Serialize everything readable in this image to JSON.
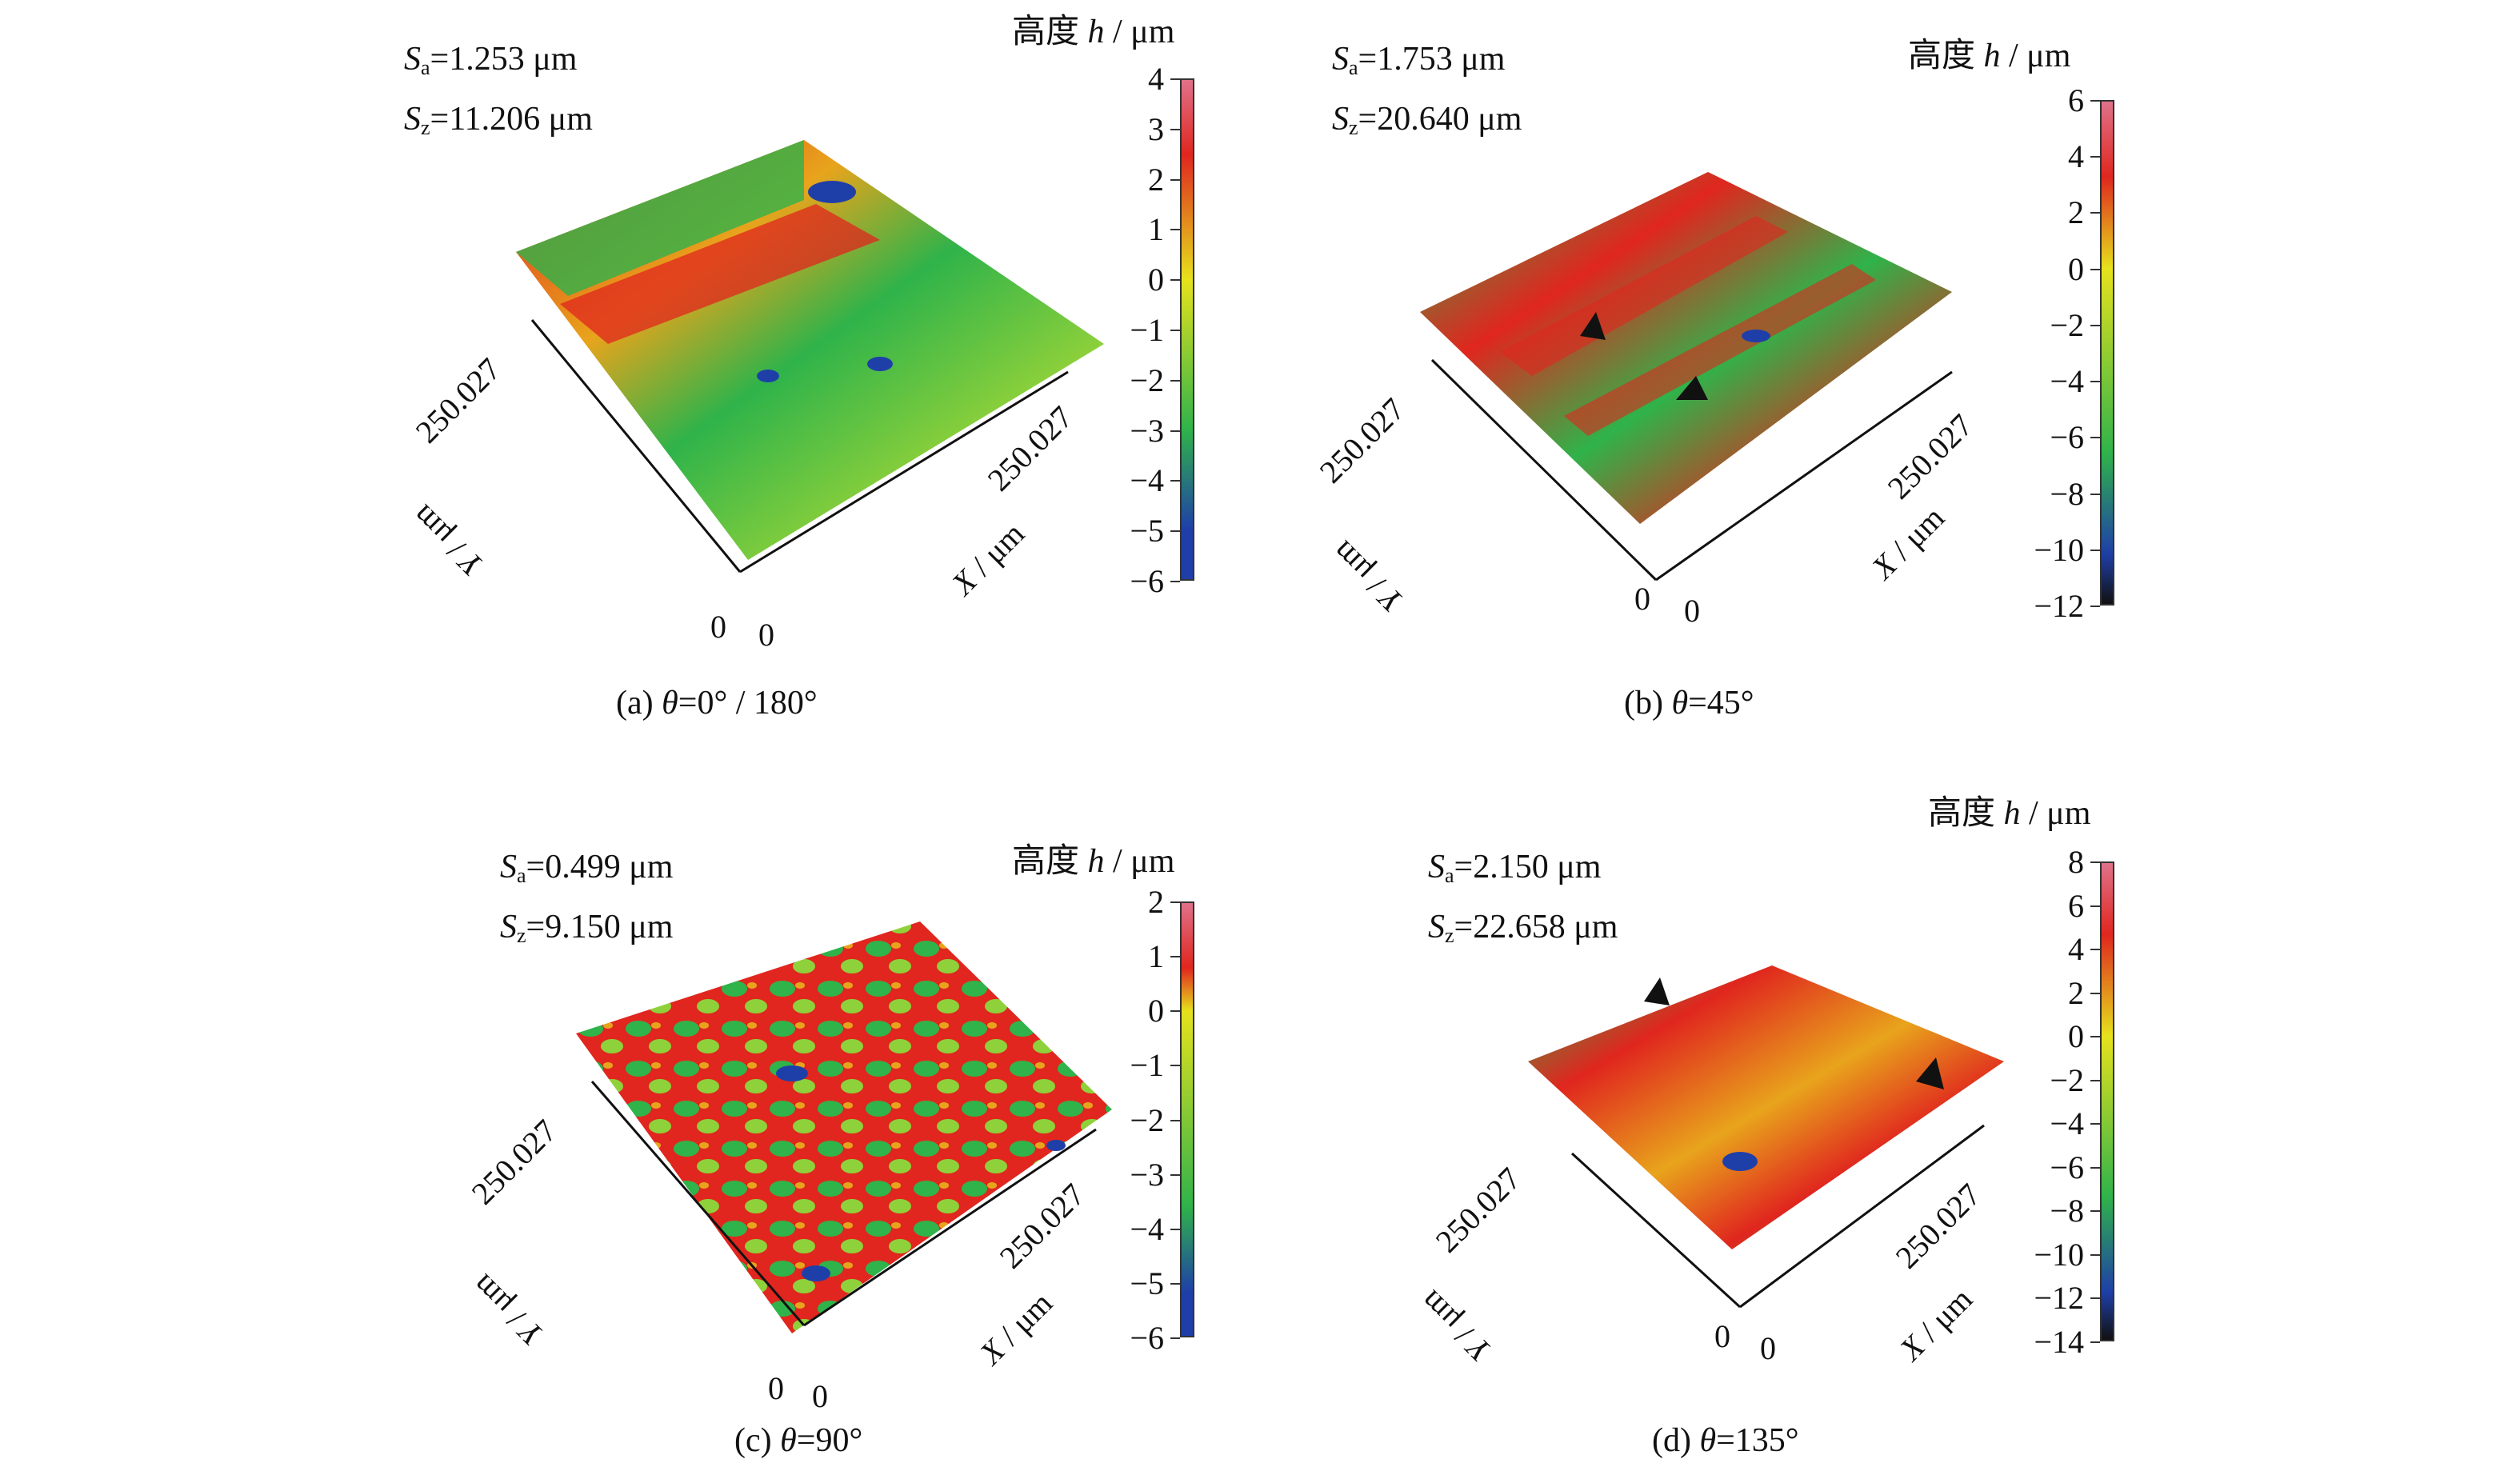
{
  "colorbar_title_prefix": "高度 ",
  "colorbar_title_var": "h",
  "colorbar_title_unit": " / μm",
  "axis_extent": "250.027",
  "axis_zero": "0",
  "x_axis_label_var": "X",
  "x_axis_label_unit": " / μm",
  "y_axis_label_var": "Y",
  "y_axis_label_unit": " / μm",
  "colors": {
    "low": "#1f3fa8",
    "mid_low": "#2fb34a",
    "mid": "#e6e21c",
    "mid_high": "#e0261e",
    "high": "#e0728a",
    "dark": "#111111"
  },
  "panels": [
    {
      "Sa": "=1.253 μm",
      "Sz": "=11.206 μm",
      "caption_prefix": "(a) ",
      "caption_var": "θ",
      "caption_rest": "=0° / 180°",
      "ticks": [
        "4",
        "3",
        "2",
        "1",
        "0",
        "−1",
        "−2",
        "−3",
        "−4",
        "−5",
        "−6"
      ],
      "range": [
        -6,
        4
      ]
    },
    {
      "Sa": "=1.753 μm",
      "Sz": "=20.640 μm",
      "caption_prefix": "(b) ",
      "caption_var": "θ",
      "caption_rest": "=45°",
      "ticks": [
        "6",
        "4",
        "2",
        "0",
        "−2",
        "−4",
        "−6",
        "−8",
        "−10",
        "−12"
      ],
      "range": [
        -12,
        6
      ]
    },
    {
      "Sa": "=0.499 μm",
      "Sz": "=9.150 μm",
      "caption_prefix": "(c) ",
      "caption_var": "θ",
      "caption_rest": "=90°",
      "ticks": [
        "2",
        "1",
        "0",
        "−1",
        "−2",
        "−3",
        "−4",
        "−5",
        "−6"
      ],
      "range": [
        -6,
        2
      ]
    },
    {
      "Sa": "=2.150 μm",
      "Sz": "=22.658 μm",
      "caption_prefix": "(d) ",
      "caption_var": "θ",
      "caption_rest": "=135°",
      "ticks": [
        "8",
        "6",
        "4",
        "2",
        "0",
        "−2",
        "−4",
        "−6",
        "−8",
        "−10",
        "−12",
        "−14"
      ],
      "range": [
        -14,
        8
      ]
    }
  ]
}
